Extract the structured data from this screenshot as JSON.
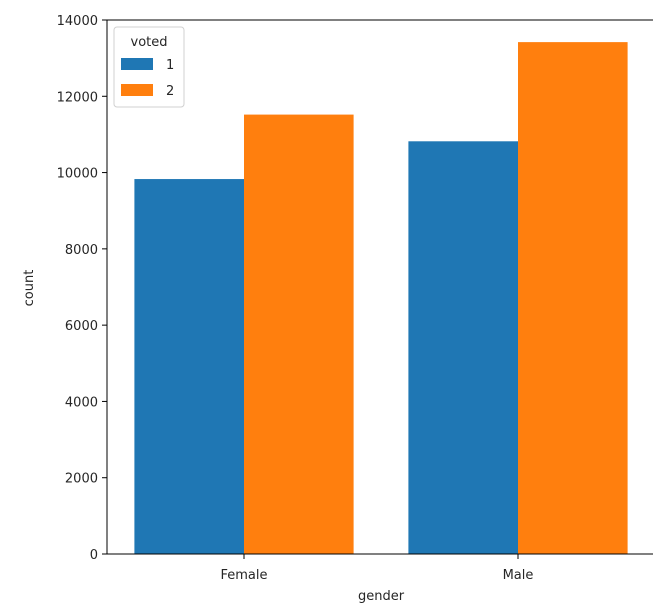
{
  "chart_data": {
    "type": "bar",
    "title": "",
    "xlabel": "gender",
    "ylabel": "count",
    "categories": [
      "Female",
      "Male"
    ],
    "ylim": [
      0,
      14000
    ],
    "yticks": [
      0,
      2000,
      4000,
      6000,
      8000,
      10000,
      12000,
      14000
    ],
    "grid": false,
    "legend": {
      "title": "voted",
      "placement": "top-left"
    },
    "series": [
      {
        "name": "1",
        "color": "#1f77b4",
        "values": [
          9830,
          10820
        ]
      },
      {
        "name": "2",
        "color": "#ff7f0e",
        "values": [
          11520,
          13420
        ]
      }
    ]
  }
}
